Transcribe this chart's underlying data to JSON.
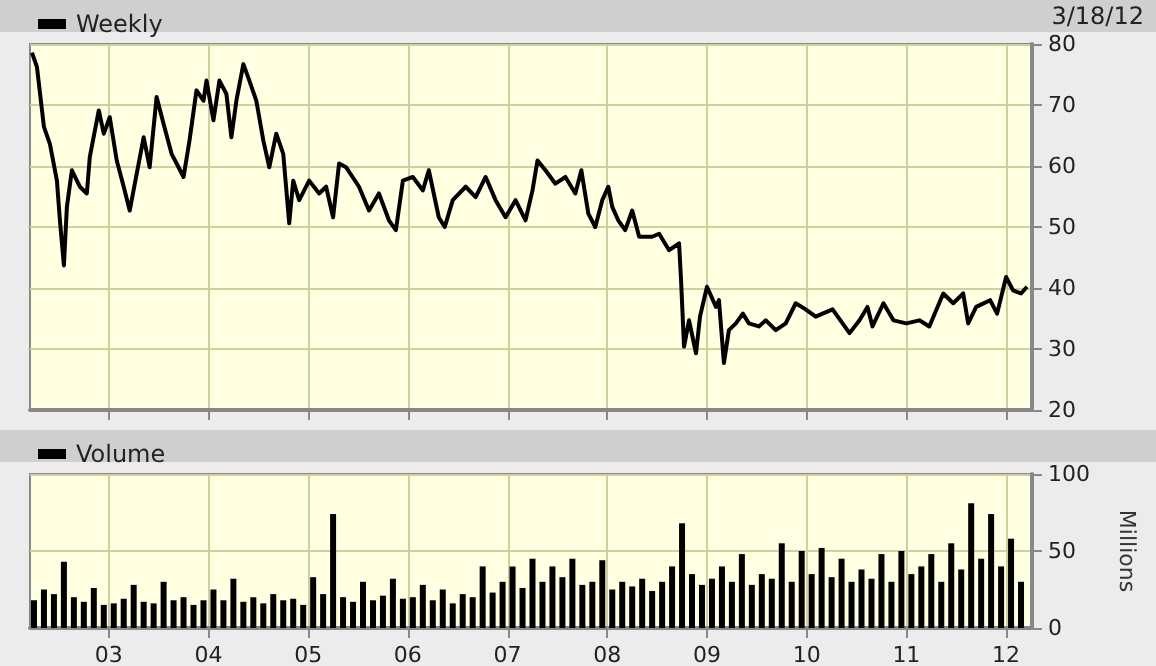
{
  "chart_data": [
    {
      "type": "line",
      "legend": "top left",
      "grid": true,
      "tick_labels": "y",
      "marker": "none",
      "line_style": "solid",
      "annotations": [
        "3/18/12"
      ],
      "xlim": [
        2002.21,
        2012.26
      ],
      "xticks": [
        {
          "value": 2003,
          "label": null
        },
        {
          "value": 2004,
          "label": null
        },
        {
          "value": 2005,
          "label": null
        },
        {
          "value": 2006,
          "label": null
        },
        {
          "value": 2007,
          "label": null
        },
        {
          "value": 2008,
          "label": null
        },
        {
          "value": 2009,
          "label": null
        },
        {
          "value": 2010,
          "label": null
        },
        {
          "value": 2011,
          "label": null
        },
        {
          "value": 2012,
          "label": null
        }
      ],
      "ylim": [
        20,
        80
      ],
      "yticks": [
        20,
        30,
        40,
        50,
        60,
        70,
        80
      ],
      "series": [
        {
          "name": "Weekly",
          "color": "#000000",
          "x": [
            2002.23,
            2002.28,
            2002.35,
            2002.41,
            2002.48,
            2002.51,
            2002.55,
            2002.58,
            2002.63,
            2002.71,
            2002.78,
            2002.81,
            2002.9,
            2002.95,
            2003.01,
            2003.08,
            2003.15,
            2003.21,
            2003.28,
            2003.35,
            2003.41,
            2003.48,
            2003.55,
            2003.63,
            2003.7,
            2003.75,
            2003.81,
            2003.88,
            2003.95,
            2003.98,
            2004.05,
            2004.11,
            2004.18,
            2004.23,
            2004.28,
            2004.35,
            2004.41,
            2004.48,
            2004.55,
            2004.61,
            2004.68,
            2004.75,
            2004.81,
            2004.85,
            2004.91,
            2005.01,
            2005.11,
            2005.18,
            2005.25,
            2005.31,
            2005.38,
            2005.51,
            2005.61,
            2005.71,
            2005.81,
            2005.88,
            2005.95,
            2006.05,
            2006.15,
            2006.21,
            2006.31,
            2006.37,
            2006.45,
            2006.58,
            2006.68,
            2006.78,
            2006.88,
            2006.98,
            2007.08,
            2007.18,
            2007.25,
            2007.3,
            2007.38,
            2007.48,
            2007.58,
            2007.68,
            2007.74,
            2007.81,
            2007.88,
            2007.95,
            2008.01,
            2008.05,
            2008.11,
            2008.18,
            2008.25,
            2008.32,
            2008.45,
            2008.52,
            2008.62,
            2008.72,
            2008.74,
            2008.77,
            2008.82,
            2008.89,
            2008.93,
            2009.0,
            2009.09,
            2009.12,
            2009.17,
            2009.22,
            2009.29,
            2009.36,
            2009.42,
            2009.52,
            2009.59,
            2009.69,
            2009.79,
            2009.89,
            2009.99,
            2010.09,
            2010.16,
            2010.26,
            2010.36,
            2010.43,
            2010.53,
            2010.61,
            2010.66,
            2010.77,
            2010.87,
            2011.0,
            2011.13,
            2011.23,
            2011.37,
            2011.47,
            2011.57,
            2011.62,
            2011.7,
            2011.84,
            2011.91,
            2012.0,
            2012.07,
            2012.15,
            2012.21
          ],
          "values": [
            78.6,
            76.2,
            66.4,
            63.6,
            57.6,
            51.1,
            43.7,
            53.3,
            59.3,
            56.6,
            55.5,
            61.5,
            69.1,
            65.3,
            68.0,
            60.9,
            56.6,
            52.7,
            58.7,
            64.7,
            59.8,
            71.3,
            66.9,
            62.0,
            59.8,
            58.2,
            64.2,
            72.4,
            70.7,
            74.0,
            67.5,
            74.0,
            71.8,
            64.7,
            70.7,
            76.7,
            74.0,
            70.7,
            64.2,
            59.8,
            65.3,
            62.0,
            50.6,
            57.6,
            54.4,
            57.6,
            55.5,
            56.6,
            51.6,
            60.4,
            59.8,
            56.6,
            52.7,
            55.5,
            51.1,
            49.5,
            57.6,
            58.2,
            56.0,
            59.3,
            51.6,
            50.0,
            54.4,
            56.6,
            54.9,
            58.2,
            54.4,
            51.6,
            54.4,
            51.1,
            56.0,
            60.9,
            59.3,
            57.1,
            58.2,
            55.5,
            59.3,
            52.2,
            50.0,
            54.4,
            56.6,
            53.3,
            51.1,
            49.5,
            52.7,
            48.4,
            48.4,
            48.9,
            46.2,
            47.3,
            41.3,
            30.4,
            34.7,
            29.3,
            35.3,
            40.2,
            36.9,
            38.0,
            27.7,
            33.1,
            34.2,
            35.8,
            34.2,
            33.7,
            34.7,
            33.1,
            34.2,
            37.5,
            36.5,
            35.3,
            35.8,
            36.5,
            34.2,
            32.6,
            34.7,
            36.9,
            33.7,
            37.5,
            34.7,
            34.2,
            34.7,
            33.7,
            39.1,
            37.5,
            39.1,
            34.2,
            36.9,
            38.0,
            35.8,
            41.8,
            39.6,
            39.1,
            40.2
          ]
        }
      ]
    },
    {
      "type": "bar",
      "legend": "top left",
      "grid": true,
      "ylabel": "Millions",
      "xlim": [
        2002.21,
        2012.26
      ],
      "xticks": [
        {
          "value": 2003,
          "label": "03"
        },
        {
          "value": 2004,
          "label": "04"
        },
        {
          "value": 2005,
          "label": "05"
        },
        {
          "value": 2006,
          "label": "06"
        },
        {
          "value": 2007,
          "label": "07"
        },
        {
          "value": 2008,
          "label": "08"
        },
        {
          "value": 2009,
          "label": "09"
        },
        {
          "value": 2010,
          "label": "10"
        },
        {
          "value": 2011,
          "label": "11"
        },
        {
          "value": 2012,
          "label": "12"
        }
      ],
      "ylim": [
        0,
        100
      ],
      "yticks": [
        0,
        50,
        100
      ],
      "series": [
        {
          "name": "Volume",
          "color": "#000000",
          "x": [
            2002.25,
            2002.35,
            2002.45,
            2002.55,
            2002.65,
            2002.75,
            2002.85,
            2002.95,
            2003.05,
            2003.15,
            2003.25,
            2003.35,
            2003.45,
            2003.55,
            2003.65,
            2003.75,
            2003.85,
            2003.95,
            2004.05,
            2004.15,
            2004.25,
            2004.35,
            2004.45,
            2004.55,
            2004.65,
            2004.75,
            2004.85,
            2004.95,
            2005.05,
            2005.15,
            2005.25,
            2005.35,
            2005.45,
            2005.55,
            2005.65,
            2005.75,
            2005.85,
            2005.95,
            2006.05,
            2006.15,
            2006.25,
            2006.35,
            2006.45,
            2006.55,
            2006.65,
            2006.75,
            2006.85,
            2006.95,
            2007.05,
            2007.15,
            2007.25,
            2007.35,
            2007.45,
            2007.55,
            2007.65,
            2007.75,
            2007.85,
            2007.95,
            2008.05,
            2008.15,
            2008.25,
            2008.35,
            2008.45,
            2008.55,
            2008.65,
            2008.75,
            2008.85,
            2008.95,
            2009.05,
            2009.15,
            2009.25,
            2009.35,
            2009.45,
            2009.55,
            2009.65,
            2009.75,
            2009.85,
            2009.95,
            2010.05,
            2010.15,
            2010.25,
            2010.35,
            2010.45,
            2010.55,
            2010.65,
            2010.75,
            2010.85,
            2010.95,
            2011.05,
            2011.15,
            2011.25,
            2011.35,
            2011.45,
            2011.55,
            2011.65,
            2011.75,
            2011.85,
            2011.95,
            2012.05,
            2012.15
          ],
          "values": [
            18,
            25,
            22,
            43,
            20,
            17,
            26,
            15,
            16,
            19,
            28,
            17,
            16,
            30,
            18,
            20,
            15,
            18,
            25,
            18,
            32,
            17,
            20,
            16,
            22,
            18,
            19,
            15,
            33,
            22,
            74,
            20,
            17,
            30,
            18,
            21,
            32,
            19,
            20,
            28,
            18,
            25,
            16,
            22,
            20,
            40,
            23,
            30,
            40,
            26,
            45,
            30,
            40,
            33,
            45,
            28,
            30,
            44,
            25,
            30,
            27,
            32,
            24,
            30,
            40,
            68,
            35,
            28,
            32,
            40,
            30,
            48,
            28,
            35,
            32,
            55,
            30,
            50,
            35,
            52,
            33,
            45,
            30,
            38,
            32,
            48,
            30,
            50,
            35,
            40,
            48,
            30,
            55,
            38,
            81,
            45,
            74,
            40,
            58,
            30
          ]
        }
      ]
    }
  ]
}
